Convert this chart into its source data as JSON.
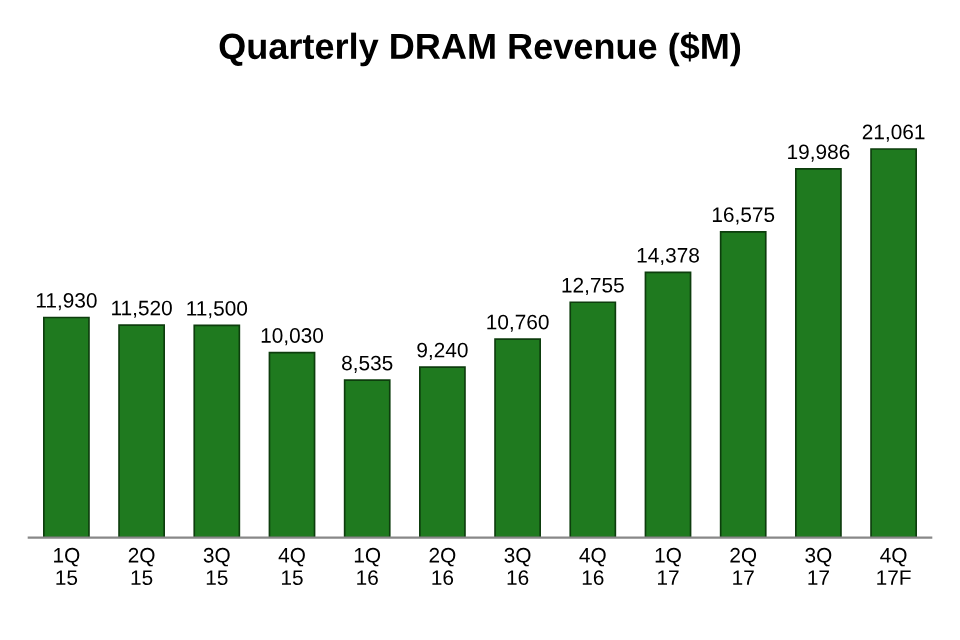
{
  "chart_data": {
    "type": "bar",
    "title": "Quarterly DRAM Revenue ($M)",
    "categories": [
      "1Q\n15",
      "2Q\n15",
      "3Q\n15",
      "4Q\n15",
      "1Q\n16",
      "2Q\n16",
      "3Q\n16",
      "4Q\n16",
      "1Q\n17",
      "2Q\n17",
      "3Q\n17",
      "4Q\n17F"
    ],
    "values": [
      11930,
      11520,
      11500,
      10030,
      8535,
      9240,
      10760,
      12755,
      14378,
      16575,
      19986,
      21061
    ],
    "value_labels": [
      "11,930",
      "11,520",
      "11,500",
      "10,030",
      "8,535",
      "9,240",
      "10,760",
      "12,755",
      "14,378",
      "16,575",
      "19,986",
      "21,061"
    ],
    "color": "#1f7a1f",
    "grid": false,
    "legend": false,
    "tick_labels": "x"
  }
}
